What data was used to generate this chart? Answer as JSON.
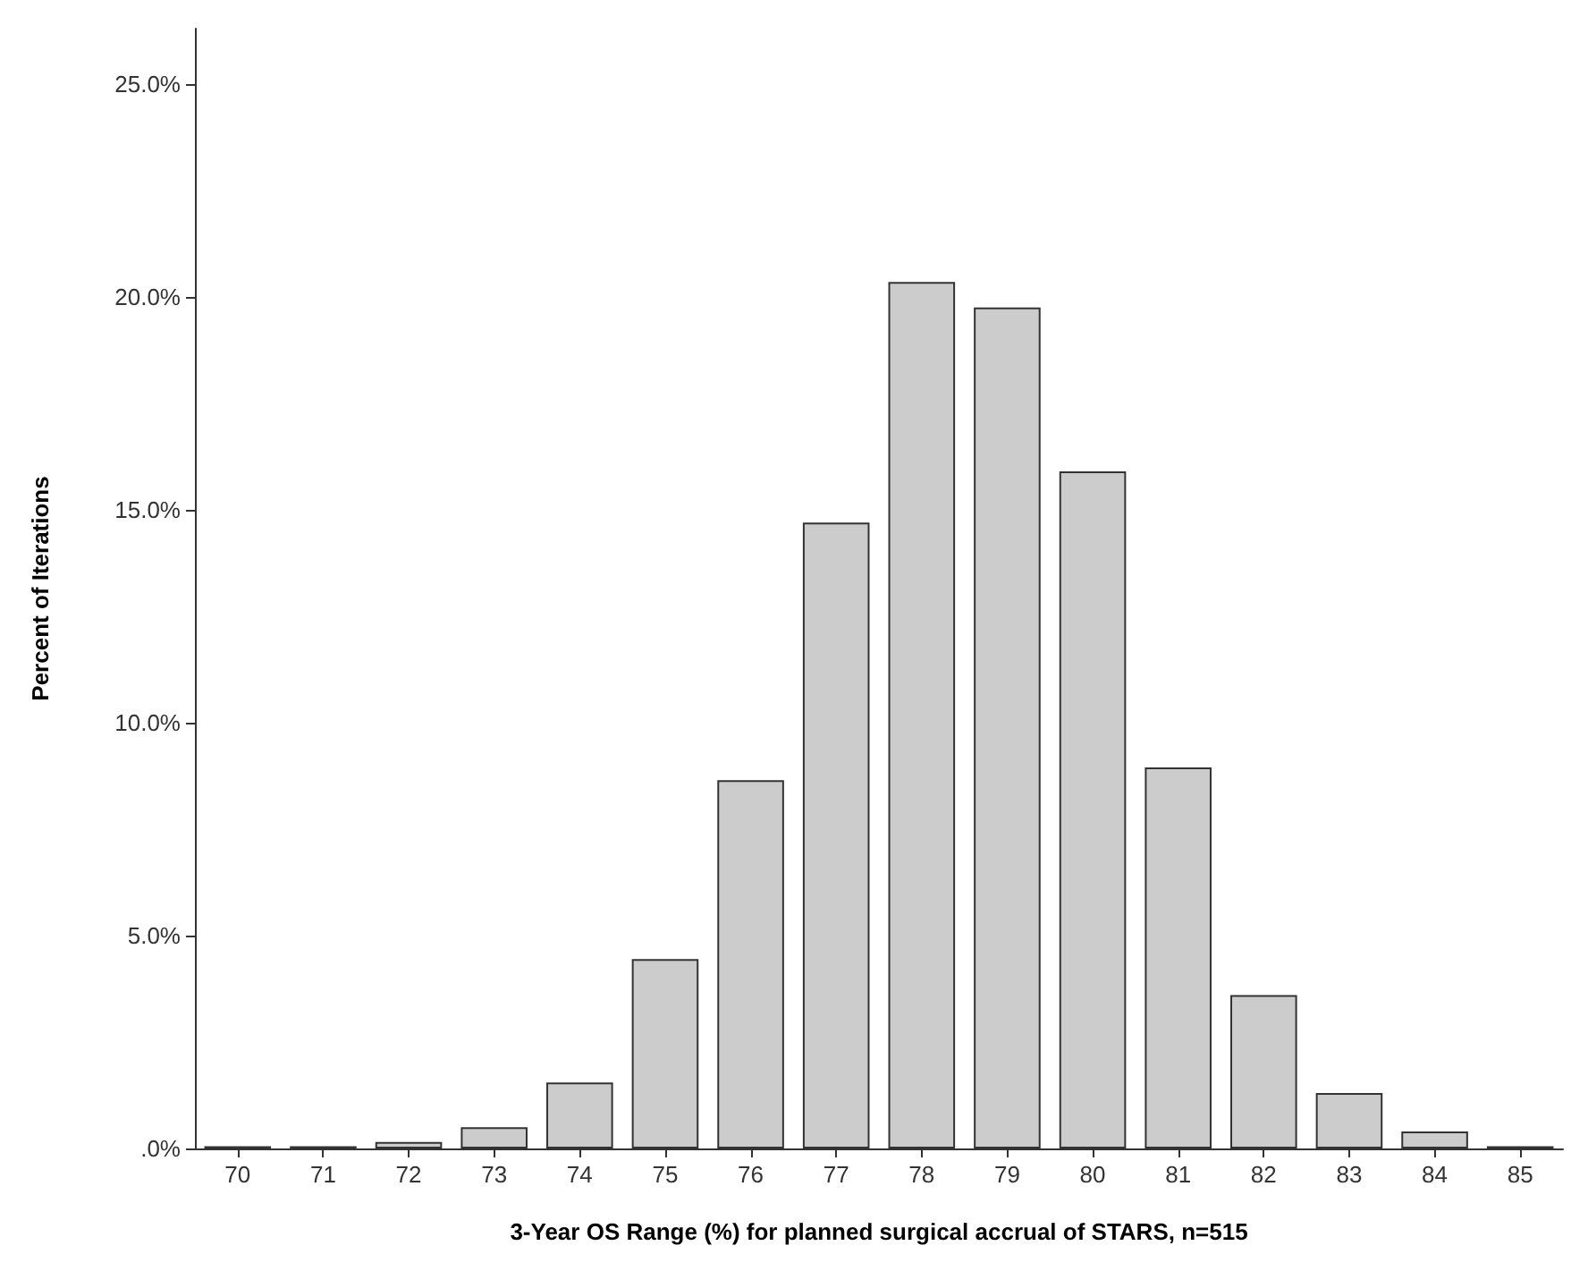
{
  "chart_data": {
    "type": "bar",
    "xlabel": "3-Year OS Range (%) for planned surgical accrual of STARS, n=515",
    "ylabel": "Percent of Iterations",
    "categories": [
      "70",
      "71",
      "72",
      "73",
      "74",
      "75",
      "76",
      "77",
      "78",
      "79",
      "80",
      "81",
      "82",
      "83",
      "84",
      "85"
    ],
    "values": [
      0.05,
      0.05,
      0.15,
      0.5,
      1.55,
      4.45,
      8.65,
      14.7,
      20.35,
      19.75,
      15.9,
      8.95,
      3.6,
      1.3,
      0.4,
      0.05
    ],
    "color": "#cccccc",
    "ylim": [
      0,
      26.3
    ],
    "yticks": [
      {
        "value": 0,
        "label": ".0%"
      },
      {
        "value": 5,
        "label": "5.0%"
      },
      {
        "value": 10,
        "label": "10.0%"
      },
      {
        "value": 15,
        "label": "15.0%"
      },
      {
        "value": 20,
        "label": "20.0%"
      },
      {
        "value": 25,
        "label": "25.0%"
      }
    ],
    "grid": false
  }
}
